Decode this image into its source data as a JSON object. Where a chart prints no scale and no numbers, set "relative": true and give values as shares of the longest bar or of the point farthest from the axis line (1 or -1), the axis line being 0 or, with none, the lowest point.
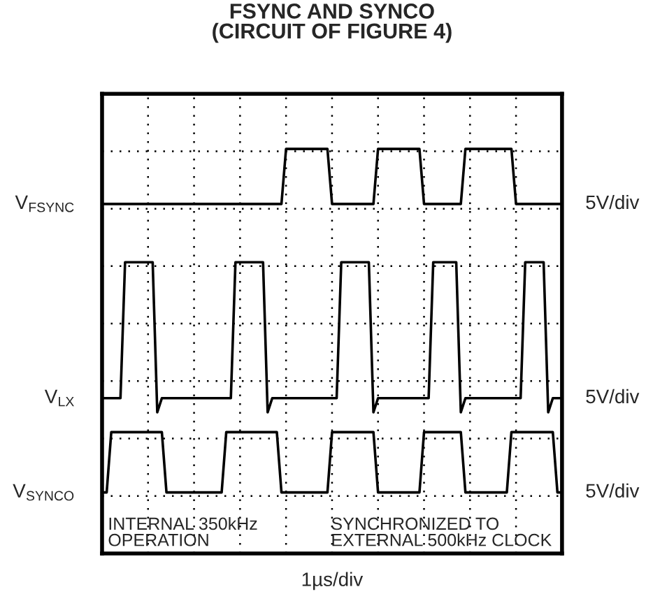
{
  "chart_data": {
    "type": "line",
    "title": "FSYNC AND SYNCO\n(CIRCUIT OF FIGURE 4)",
    "xlabel": "1µs/div",
    "relative": true,
    "grid": true,
    "categories": [
      null,
      null,
      null,
      null,
      null,
      null,
      null,
      null,
      null,
      null,
      null,
      null,
      null,
      null,
      null,
      null,
      null,
      null,
      null,
      null,
      null,
      null,
      null,
      null,
      null,
      null,
      null,
      null,
      null,
      null,
      null,
      null,
      null,
      null,
      null,
      null,
      null,
      null,
      null,
      null,
      null,
      null,
      null,
      null,
      null,
      null,
      null,
      null,
      null,
      null,
      null,
      null,
      null,
      null,
      null,
      null,
      null,
      null,
      null,
      null,
      null,
      null,
      null,
      null,
      null,
      null,
      null,
      null,
      null,
      null,
      null,
      null,
      null,
      null,
      null,
      null,
      null,
      null,
      null,
      null,
      null,
      null,
      null,
      null,
      null,
      null,
      null,
      null,
      null,
      null,
      null,
      null,
      null,
      null,
      null,
      null,
      null,
      null,
      null,
      null,
      null
    ],
    "series": [
      {
        "name": "V$_{FSYNC}$",
        "color": "#000000",
        "values": [
          0.864,
          0.864,
          0.864,
          0.864,
          0.864,
          0.864,
          0.864,
          0.864,
          0.864,
          0.864,
          0.864,
          0.864,
          0.864,
          0.864,
          0.864,
          0.864,
          0.864,
          0.864,
          0.864,
          0.864,
          0.864,
          0.864,
          0.864,
          0.864,
          0.864,
          0.864,
          0.864,
          0.864,
          0.864,
          0.864,
          0.864,
          0.864,
          0.864,
          0.864,
          0.864,
          0.864,
          0.864,
          0.864,
          0.864,
          0.864,
          1,
          1,
          1,
          1,
          1,
          1,
          1,
          1,
          1,
          1,
          0.864,
          0.864,
          0.864,
          0.864,
          0.864,
          0.864,
          0.864,
          0.864,
          0.864,
          0.864,
          1,
          1,
          1,
          1,
          1,
          1,
          1,
          1,
          1,
          1,
          0.864,
          0.864,
          0.864,
          0.864,
          0.864,
          0.864,
          0.864,
          0.864,
          0.864,
          1,
          1,
          1,
          1,
          1,
          1,
          1,
          1,
          1,
          1,
          1,
          0.864,
          0.864,
          0.864,
          0.864,
          0.864,
          0.864,
          0.864,
          0.864,
          0.864,
          0.864,
          0.864
        ]
      },
      {
        "name": "V$_{LX}$",
        "color": "#000000",
        "values": [
          0.384,
          0.384,
          0.384,
          0.384,
          0.384,
          0.72,
          0.72,
          0.72,
          0.72,
          0.72,
          0.72,
          0.72,
          0.349,
          0.384,
          0.384,
          0.384,
          0.384,
          0.384,
          0.384,
          0.384,
          0.384,
          0.384,
          0.384,
          0.384,
          0.384,
          0.384,
          0.384,
          0.384,
          0.384,
          0.72,
          0.72,
          0.72,
          0.72,
          0.72,
          0.72,
          0.72,
          0.349,
          0.384,
          0.384,
          0.384,
          0.384,
          0.384,
          0.384,
          0.384,
          0.384,
          0.384,
          0.384,
          0.384,
          0.384,
          0.384,
          0.384,
          0.384,
          0.72,
          0.72,
          0.72,
          0.72,
          0.72,
          0.72,
          0.72,
          0.349,
          0.384,
          0.384,
          0.384,
          0.384,
          0.384,
          0.384,
          0.384,
          0.384,
          0.384,
          0.384,
          0.384,
          0.384,
          0.72,
          0.72,
          0.72,
          0.72,
          0.72,
          0.72,
          0.349,
          0.384,
          0.384,
          0.384,
          0.384,
          0.384,
          0.384,
          0.384,
          0.384,
          0.384,
          0.384,
          0.384,
          0.384,
          0.384,
          0.72,
          0.72,
          0.72,
          0.72,
          0.72,
          0.349,
          0.384,
          0.384,
          0.384
        ]
      },
      {
        "name": "V$_{SYNCO}$",
        "color": "#000000",
        "values": [
          0.151,
          0.151,
          0.3,
          0.3,
          0.3,
          0.3,
          0.3,
          0.3,
          0.3,
          0.3,
          0.3,
          0.3,
          0.3,
          0.3,
          0.151,
          0.151,
          0.151,
          0.151,
          0.151,
          0.151,
          0.151,
          0.151,
          0.151,
          0.151,
          0.151,
          0.151,
          0.151,
          0.3,
          0.3,
          0.3,
          0.3,
          0.3,
          0.3,
          0.3,
          0.3,
          0.3,
          0.3,
          0.3,
          0.3,
          0.151,
          0.151,
          0.151,
          0.151,
          0.151,
          0.151,
          0.151,
          0.151,
          0.151,
          0.151,
          0.151,
          0.3,
          0.3,
          0.3,
          0.3,
          0.3,
          0.3,
          0.3,
          0.3,
          0.3,
          0.3,
          0.151,
          0.151,
          0.151,
          0.151,
          0.151,
          0.151,
          0.151,
          0.151,
          0.151,
          0.151,
          0.3,
          0.3,
          0.3,
          0.3,
          0.3,
          0.3,
          0.3,
          0.3,
          0.3,
          0.151,
          0.151,
          0.151,
          0.151,
          0.151,
          0.151,
          0.151,
          0.151,
          0.151,
          0.151,
          0.3,
          0.3,
          0.3,
          0.3,
          0.3,
          0.3,
          0.3,
          0.3,
          0.3,
          0.3,
          0.151,
          0.151
        ]
      }
    ],
    "annotations": [
      "5V/div",
      "5V/div",
      "5V/div",
      "INTERNAL 350kHz\nOPERATION",
      "SYNCHRONIZED TO\nEXTERNAL 500kHz CLOCK"
    ]
  }
}
